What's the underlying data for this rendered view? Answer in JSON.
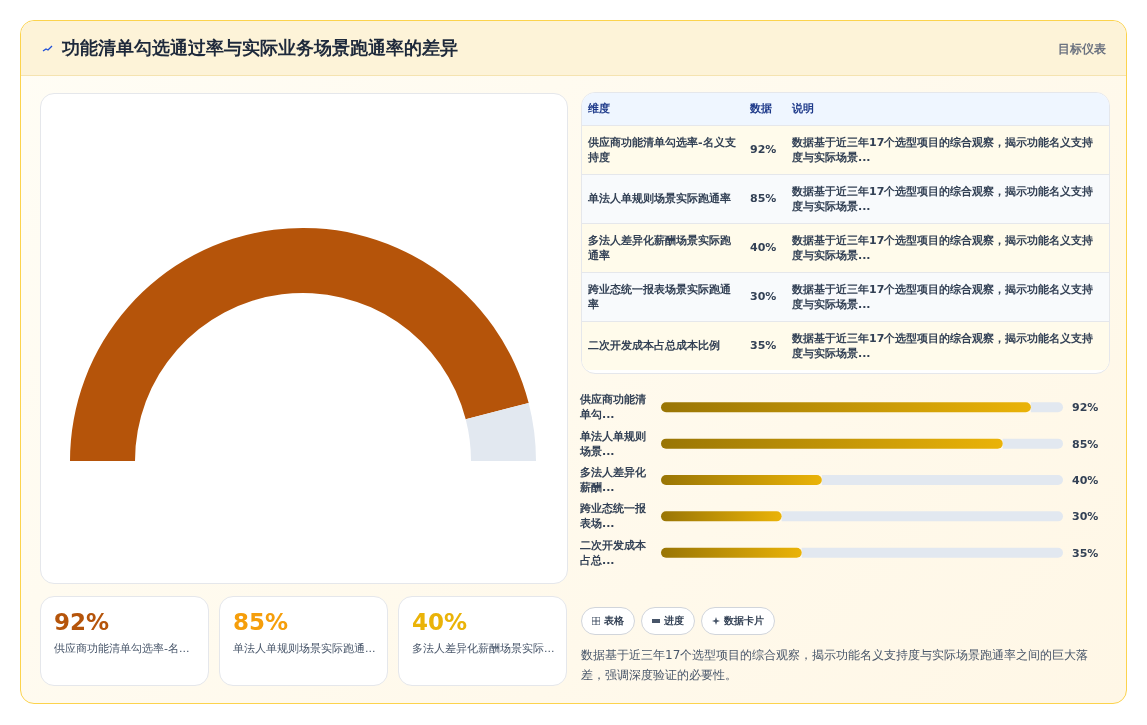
{
  "chart_data": [
    {
      "type": "other",
      "annotations": [
        "功能清单勾选通过率与实际业务场景跑通率的差异",
        "目标仪表"
      ]
    },
    {
      "type": "donut",
      "categories": [
        null,
        null
      ],
      "values": [
        92,
        8
      ],
      "colors": [
        "#b5540a",
        "#e2e8f0"
      ]
    },
    {
      "type": "other",
      "annotations": [
        "维度",
        "数据",
        "说明",
        "供应商功能清单勾选率-名义支持度",
        "92%",
        "数据基于近三年17个选型项目的综合观察，揭示功能名义支持度与实际场景...",
        "单法人单规则场景实际跑通率",
        "85%",
        "数据基于近三年17个选型项目的综合观察，揭示功能名义支持度与实际场景...",
        "多法人差异化薪酬场景实际跑通率",
        "40%",
        "数据基于近三年17个选型项目的综合观察，揭示功能名义支持度与实际场景...",
        "跨业态统一报表场景实际跑通率",
        "30%",
        "数据基于近三年17个选型项目的综合观察，揭示功能名义支持度与实际场景...",
        "二次开发成本占总成本比例",
        "35%",
        "数据基于近三年17个选型项目的综合观察，揭示功能名义支持度与实际场景..."
      ]
    },
    {
      "type": "bar",
      "orientation": "horizontal",
      "categories": [
        "供应商功能清单勾...",
        "单法人单规则场景...",
        "多法人差异化薪酬...",
        "跨业态统一报表场...",
        "二次开发成本占总..."
      ],
      "values": [
        92,
        85,
        40,
        30,
        35
      ],
      "value_labels": [
        "92%",
        "85%",
        "40%",
        "30%",
        "35%"
      ],
      "color": "#eab308",
      "xlim": [
        0,
        100
      ],
      "tick_labels": false
    },
    {
      "type": "other",
      "annotations": [
        "92%",
        "供应商功能清单勾选率-名...",
        "85%",
        "单法人单规则场景实际跑通...",
        "40%",
        "多法人差异化薪酬场景实际...",
        "表格",
        "进度",
        "数据卡片",
        "数据基于近三年17个选型项目的综合观察，揭示功能名义支持度与实际场景跑通率之间的巨大落差，强调深度验证的必要性。"
      ]
    }
  ]
}
